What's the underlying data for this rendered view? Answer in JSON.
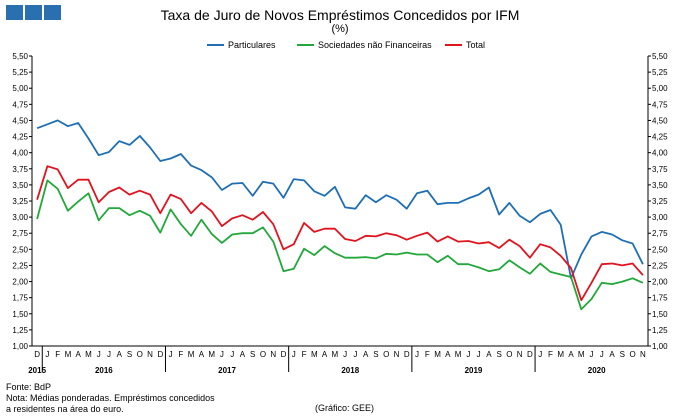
{
  "chart_data": {
    "type": "line",
    "title": "Taxa de Juro de Novos Empréstimos Concedidos por IFM",
    "subtitle": "(%)",
    "ylim": [
      1.0,
      5.5
    ],
    "y_ticks": [
      "1,00",
      "1,25",
      "1,50",
      "1,75",
      "2,00",
      "2,25",
      "2,50",
      "2,75",
      "3,00",
      "3,25",
      "3,50",
      "3,75",
      "4,00",
      "4,25",
      "4,50",
      "4,75",
      "5,00",
      "5,25",
      "5,50"
    ],
    "grid": false,
    "legend_position": "top",
    "x": [
      "D",
      "J",
      "F",
      "M",
      "A",
      "M",
      "J",
      "J",
      "A",
      "S",
      "O",
      "N",
      "D",
      "J",
      "F",
      "M",
      "A",
      "M",
      "J",
      "J",
      "A",
      "S",
      "O",
      "N",
      "D",
      "J",
      "F",
      "M",
      "A",
      "M",
      "J",
      "J",
      "A",
      "S",
      "O",
      "N",
      "D",
      "J",
      "F",
      "M",
      "A",
      "M",
      "J",
      "J",
      "A",
      "S",
      "O",
      "N",
      "D",
      "J",
      "F",
      "M",
      "A",
      "M",
      "J",
      "J",
      "A",
      "S",
      "O",
      "N"
    ],
    "year_labels": [
      {
        "label": "2015",
        "index": 0
      },
      {
        "label": "2016",
        "index": 6.5
      },
      {
        "label": "2017",
        "index": 18.5
      },
      {
        "label": "2018",
        "index": 30.5
      },
      {
        "label": "2019",
        "index": 42.5
      },
      {
        "label": "2020",
        "index": 54.5
      }
    ],
    "series": [
      {
        "name": "Particulares",
        "color": "#1f6fb5",
        "values": [
          4.38,
          4.44,
          4.5,
          4.41,
          4.46,
          4.22,
          3.96,
          4.01,
          4.18,
          4.12,
          4.26,
          4.08,
          3.87,
          3.91,
          3.98,
          3.8,
          3.73,
          3.62,
          3.42,
          3.52,
          3.53,
          3.33,
          3.55,
          3.52,
          3.3,
          3.59,
          3.57,
          3.4,
          3.33,
          3.47,
          3.15,
          3.13,
          3.34,
          3.23,
          3.34,
          3.27,
          3.13,
          3.37,
          3.41,
          3.2,
          3.22,
          3.22,
          3.29,
          3.35,
          3.46,
          3.04,
          3.22,
          3.02,
          2.92,
          3.05,
          3.11,
          2.88,
          2.05,
          2.42,
          2.7,
          2.77,
          2.73,
          2.64,
          2.59,
          2.27
        ]
      },
      {
        "name": "Sociedades não Financeiras",
        "color": "#22a83a",
        "values": [
          2.97,
          3.57,
          3.44,
          3.1,
          3.24,
          3.37,
          2.95,
          3.14,
          3.14,
          3.03,
          3.1,
          3.02,
          2.76,
          3.12,
          2.89,
          2.71,
          2.96,
          2.74,
          2.6,
          2.73,
          2.75,
          2.75,
          2.84,
          2.62,
          2.16,
          2.2,
          2.51,
          2.41,
          2.55,
          2.44,
          2.37,
          2.37,
          2.38,
          2.36,
          2.43,
          2.42,
          2.45,
          2.42,
          2.42,
          2.3,
          2.4,
          2.27,
          2.27,
          2.22,
          2.16,
          2.19,
          2.33,
          2.22,
          2.12,
          2.28,
          2.15,
          2.11,
          2.07,
          1.57,
          1.73,
          1.98,
          1.96,
          2.0,
          2.05,
          1.98
        ]
      },
      {
        "name": "Total",
        "color": "#e0141e",
        "values": [
          3.27,
          3.79,
          3.74,
          3.45,
          3.58,
          3.58,
          3.23,
          3.39,
          3.46,
          3.35,
          3.41,
          3.35,
          3.06,
          3.35,
          3.28,
          3.06,
          3.22,
          3.09,
          2.86,
          2.98,
          3.03,
          2.96,
          3.08,
          2.89,
          2.5,
          2.58,
          2.91,
          2.77,
          2.82,
          2.82,
          2.66,
          2.63,
          2.71,
          2.7,
          2.75,
          2.72,
          2.65,
          2.71,
          2.76,
          2.62,
          2.7,
          2.62,
          2.63,
          2.59,
          2.61,
          2.52,
          2.65,
          2.55,
          2.37,
          2.58,
          2.53,
          2.4,
          2.21,
          1.71,
          1.98,
          2.27,
          2.28,
          2.25,
          2.28,
          2.1
        ]
      }
    ]
  },
  "footer": {
    "source": "Fonte: BdP",
    "note_line1": "Nota: Médias ponderadas.  Empréstimos concedidos",
    "note_line2": "a residentes na área do euro.",
    "credit": "(Gráfico: GEE)"
  }
}
